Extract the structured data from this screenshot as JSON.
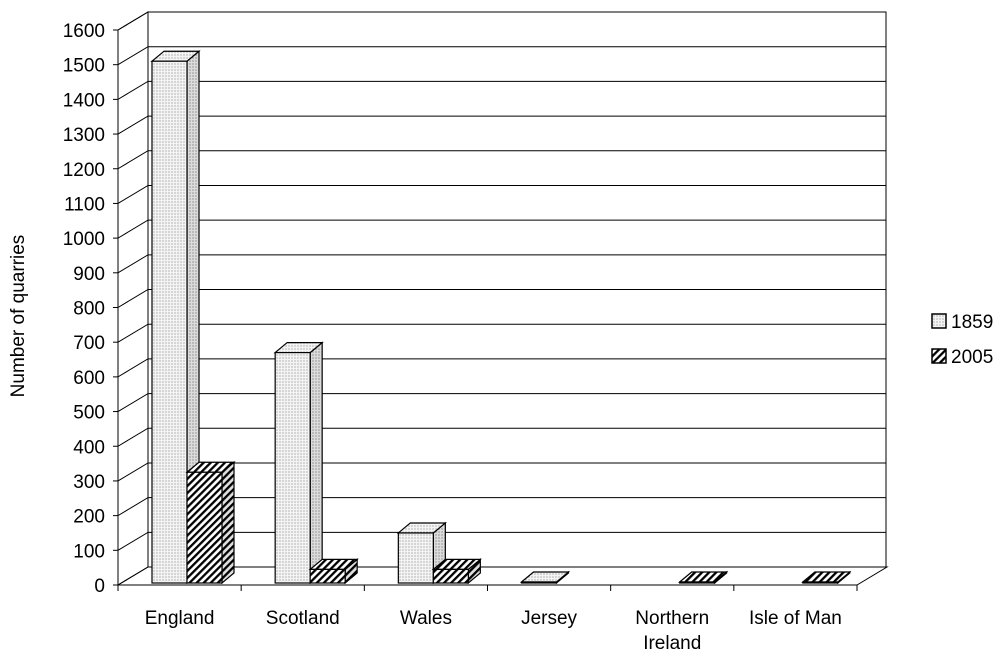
{
  "chart_data": {
    "type": "bar",
    "style": "3d-clustered",
    "ylabel": "Number of quarries",
    "ylim": [
      0,
      1600
    ],
    "ytick_step": 100,
    "grid": true,
    "legend_position": "right",
    "categories": [
      "England",
      "Scotland",
      "Wales",
      "Jersey",
      "Northern Ireland",
      "Isle of Man"
    ],
    "category_lines": [
      [
        "England"
      ],
      [
        "Scotland"
      ],
      [
        "Wales"
      ],
      [
        "Jersey"
      ],
      [
        "Northern",
        "Ireland"
      ],
      [
        "Isle of Man"
      ]
    ],
    "series": [
      {
        "name": "1859",
        "pattern": "dotted",
        "values": [
          1510,
          670,
          150,
          4,
          0,
          0
        ]
      },
      {
        "name": "2005",
        "pattern": "hatched",
        "values": [
          325,
          45,
          45,
          0,
          4,
          4
        ]
      }
    ]
  }
}
